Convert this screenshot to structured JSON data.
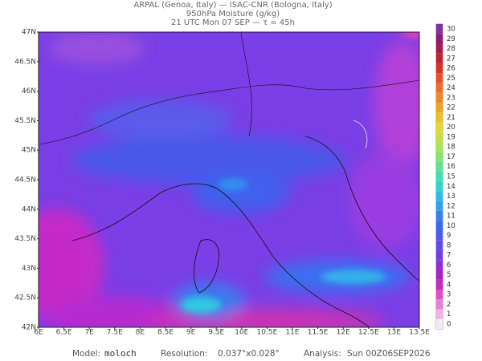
{
  "header": {
    "line1": "ARPAL (Genoa, Italy)  —  ISAC-CNR (Bologna, Italy)",
    "line2": "950hPa Moisture (g/kg)",
    "line3": "21 UTC Mon 07 SEP  —  τ = 45h"
  },
  "map": {
    "lat_labels": [
      "47N",
      "46.5N",
      "46N",
      "45.5N",
      "45N",
      "44.5N",
      "44N",
      "43.5N",
      "43N",
      "42.5N",
      "42N"
    ],
    "lon_labels": [
      "6E",
      "6.5E",
      "7E",
      "7.5E",
      "8E",
      "8.5E",
      "9E",
      "9.5E",
      "10E",
      "10.5E",
      "11E",
      "11.5E",
      "12E",
      "12.5E",
      "13E",
      "13.5E"
    ]
  },
  "colorbar": {
    "ticks": [
      0,
      1,
      2,
      3,
      4,
      5,
      6,
      7,
      8,
      9,
      10,
      11,
      12,
      13,
      14,
      15,
      16,
      17,
      18,
      19,
      20,
      21,
      22,
      23,
      24,
      25,
      26,
      27,
      28,
      29,
      30
    ],
    "colors": [
      "#f4ecf4",
      "#f0b4e4",
      "#e880d8",
      "#dc50cc",
      "#c828c0",
      "#a820c8",
      "#8c30d8",
      "#7040e4",
      "#5c4cec",
      "#4c58f0",
      "#3c68f0",
      "#3480f0",
      "#30a0f0",
      "#30bce8",
      "#30d4d0",
      "#40e0b0",
      "#60e490",
      "#84e470",
      "#a8e450",
      "#c8e040",
      "#e4d830",
      "#f0c028",
      "#f0a428",
      "#f08828",
      "#f06c28",
      "#e85028",
      "#d83428",
      "#c02430",
      "#a81c50",
      "#901878",
      "#8030a0"
    ]
  },
  "footer": {
    "model_label": "Model:",
    "model": "moloch",
    "resolution_label": "Resolution:",
    "resolution": "0.037°x0.028°",
    "analysis_label": "Analysis:",
    "analysis": "Sun 00Z06SEP2026"
  }
}
